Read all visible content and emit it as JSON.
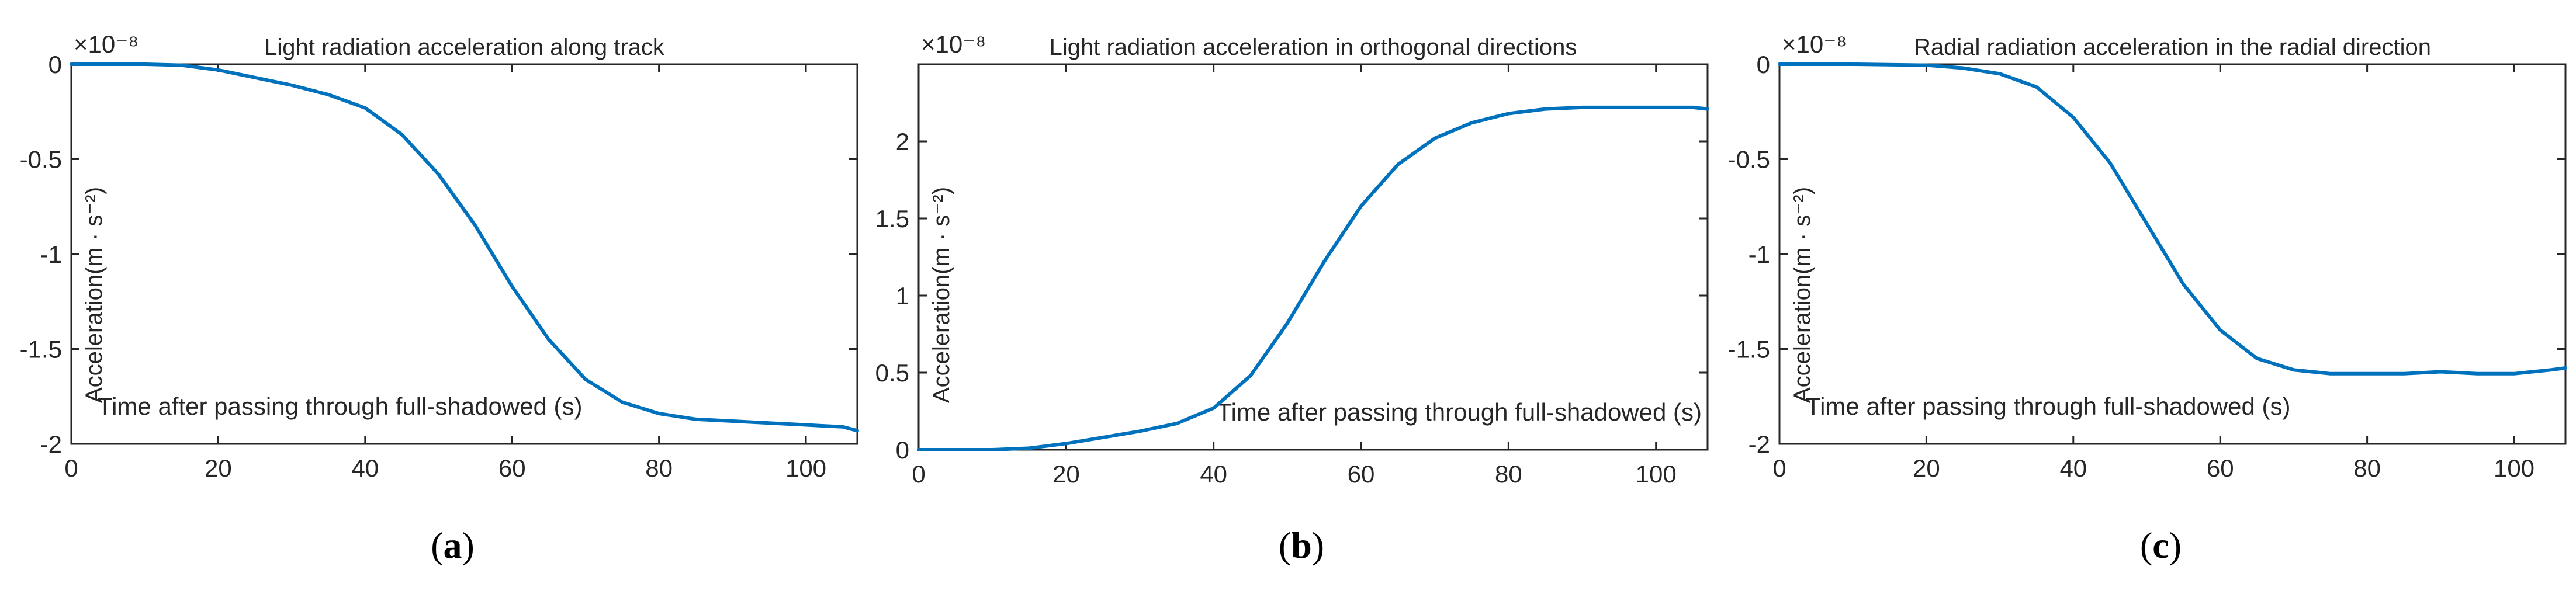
{
  "line_color": "#0072BD",
  "chart_data": [
    {
      "panel_label": "a",
      "type": "line",
      "title": "Light radiation acceleration along track",
      "ylabel": "Acceleration(m · s⁻²)",
      "annotation": "Time after passing through full-shadowed (s)",
      "exponent_label": "×10⁻⁸",
      "xlim": [
        0,
        107
      ],
      "ylim": [
        -2,
        0
      ],
      "xticks": [
        0,
        20,
        40,
        60,
        80,
        100
      ],
      "yticks": [
        0,
        -0.5,
        -1,
        -1.5,
        -2
      ],
      "ytick_labels": [
        "0",
        "-0.5",
        "-1",
        "-1.5",
        "-2"
      ],
      "series": [
        {
          "name": "along track",
          "x": [
            0,
            10,
            15,
            20,
            25,
            30,
            35,
            40,
            45,
            50,
            55,
            60,
            65,
            70,
            75,
            80,
            85,
            90,
            95,
            100,
            105,
            107
          ],
          "y": [
            0,
            0,
            -0.005,
            -0.03,
            -0.07,
            -0.11,
            -0.16,
            -0.23,
            -0.37,
            -0.58,
            -0.85,
            -1.17,
            -1.45,
            -1.66,
            -1.78,
            -1.84,
            -1.87,
            -1.88,
            -1.89,
            -1.9,
            -1.91,
            -1.93
          ]
        }
      ]
    },
    {
      "panel_label": "b",
      "type": "line",
      "title": "Light radiation acceleration in orthogonal directions",
      "ylabel": "Acceleration(m · s⁻²)",
      "annotation": "Time after passing through full-shadowed (s)",
      "exponent_label": "×10⁻⁸",
      "xlim": [
        0,
        107
      ],
      "ylim": [
        0,
        2.5
      ],
      "xticks": [
        0,
        20,
        40,
        60,
        80,
        100
      ],
      "yticks": [
        0,
        0.5,
        1,
        1.5,
        2
      ],
      "ytick_labels": [
        "0",
        "0.5",
        "1",
        "1.5",
        "2"
      ],
      "series": [
        {
          "name": "orthogonal",
          "x": [
            0,
            10,
            15,
            20,
            25,
            30,
            35,
            40,
            45,
            50,
            55,
            60,
            65,
            70,
            75,
            80,
            85,
            90,
            95,
            100,
            105,
            107
          ],
          "y": [
            0,
            0,
            0.01,
            0.04,
            0.08,
            0.12,
            0.17,
            0.27,
            0.48,
            0.82,
            1.22,
            1.58,
            1.85,
            2.02,
            2.12,
            2.18,
            2.21,
            2.22,
            2.22,
            2.22,
            2.22,
            2.21
          ]
        }
      ]
    },
    {
      "panel_label": "c",
      "type": "line",
      "title": "Radial radiation acceleration in the radial direction",
      "ylabel": "Acceleration(m · s⁻²)",
      "annotation": "Time after passing through full-shadowed (s)",
      "exponent_label": "×10⁻⁸",
      "xlim": [
        0,
        107
      ],
      "ylim": [
        -2,
        0
      ],
      "xticks": [
        0,
        20,
        40,
        60,
        80,
        100
      ],
      "yticks": [
        0,
        -0.5,
        -1,
        -1.5,
        -2
      ],
      "ytick_labels": [
        "0",
        "-0.5",
        "-1",
        "-1.5",
        "-2"
      ],
      "series": [
        {
          "name": "radial",
          "x": [
            0,
            10,
            20,
            25,
            30,
            35,
            40,
            45,
            50,
            55,
            60,
            65,
            70,
            75,
            80,
            85,
            90,
            95,
            100,
            105,
            107
          ],
          "y": [
            0,
            0,
            -0.005,
            -0.02,
            -0.05,
            -0.12,
            -0.28,
            -0.52,
            -0.84,
            -1.16,
            -1.4,
            -1.55,
            -1.61,
            -1.63,
            -1.63,
            -1.63,
            -1.62,
            -1.63,
            -1.63,
            -1.61,
            -1.6
          ]
        }
      ]
    }
  ]
}
